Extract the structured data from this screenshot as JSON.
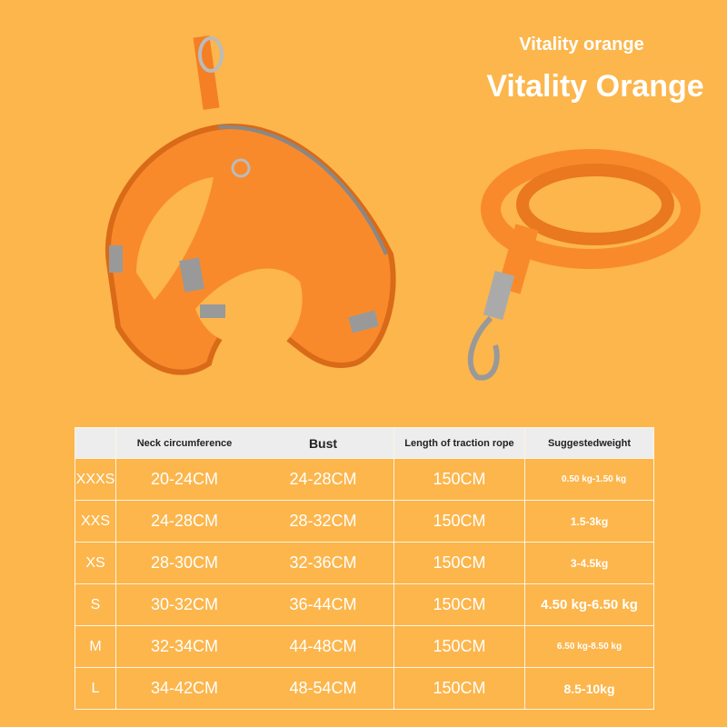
{
  "header": {
    "subtitle": "Vitality orange",
    "title": "Vitality Orange"
  },
  "colors": {
    "background": "#fcb64c",
    "product": "#f98a2c",
    "header_row": "#ededed"
  },
  "table": {
    "headers": [
      "",
      "Neck circumference",
      "Bust",
      "Length of traction rope",
      "Suggestedweight"
    ],
    "rows": [
      {
        "size": "XXXS",
        "neck": "20-24CM",
        "bust": "24-28CM",
        "rope": "150CM",
        "weight": "0.50 kg-1.50 kg"
      },
      {
        "size": "XXS",
        "neck": "24-28CM",
        "bust": "28-32CM",
        "rope": "150CM",
        "weight": "1.5-3kg"
      },
      {
        "size": "XS",
        "neck": "28-30CM",
        "bust": "32-36CM",
        "rope": "150CM",
        "weight": "3-4.5kg"
      },
      {
        "size": "S",
        "neck": "30-32CM",
        "bust": "36-44CM",
        "rope": "150CM",
        "weight": "4.50 kg-6.50 kg"
      },
      {
        "size": "M",
        "neck": "32-34CM",
        "bust": "44-48CM",
        "rope": "150CM",
        "weight": "6.50 kg-8.50 kg"
      },
      {
        "size": "L",
        "neck": "34-42CM",
        "bust": "48-54CM",
        "rope": "150CM",
        "weight": "8.5-10kg"
      }
    ]
  }
}
